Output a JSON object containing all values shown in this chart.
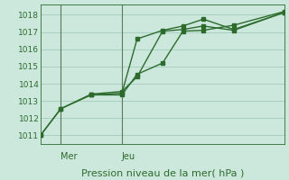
{
  "xlabel": "Pression niveau de la mer( hPa )",
  "bg_color": "#cce8dc",
  "grid_color": "#aacfbf",
  "line_color": "#2d6b2d",
  "marker_color": "#2d6b2d",
  "vline_color": "#5a7a5a",
  "ylim": [
    1010.5,
    1018.6
  ],
  "yticks": [
    1011,
    1012,
    1013,
    1014,
    1015,
    1016,
    1017,
    1018
  ],
  "xlim": [
    0,
    24
  ],
  "vlines": [
    2,
    8
  ],
  "day_labels": [
    [
      "Mer",
      2
    ],
    [
      "Jeu",
      8
    ]
  ],
  "series1_x": [
    0,
    2,
    5,
    8,
    9.5,
    12,
    14,
    16,
    19,
    24
  ],
  "series1_y": [
    1011.0,
    1012.55,
    1013.4,
    1013.55,
    1014.4,
    1017.05,
    1017.15,
    1017.35,
    1017.1,
    1018.15
  ],
  "series2_x": [
    0,
    2,
    5,
    8,
    9.5,
    12,
    14,
    16,
    19,
    24
  ],
  "series2_y": [
    1011.0,
    1012.55,
    1013.35,
    1013.45,
    1016.6,
    1017.1,
    1017.35,
    1017.75,
    1017.15,
    1018.15
  ],
  "series3_x": [
    5,
    8,
    9.5,
    12,
    14,
    16,
    19,
    24
  ],
  "series3_y": [
    1013.35,
    1013.35,
    1014.55,
    1015.2,
    1017.05,
    1017.1,
    1017.4,
    1018.2
  ],
  "lw": 1.0,
  "ms": 2.5,
  "ytick_fontsize": 6.5,
  "xlabel_fontsize": 8.0,
  "day_fontsize": 7.0
}
